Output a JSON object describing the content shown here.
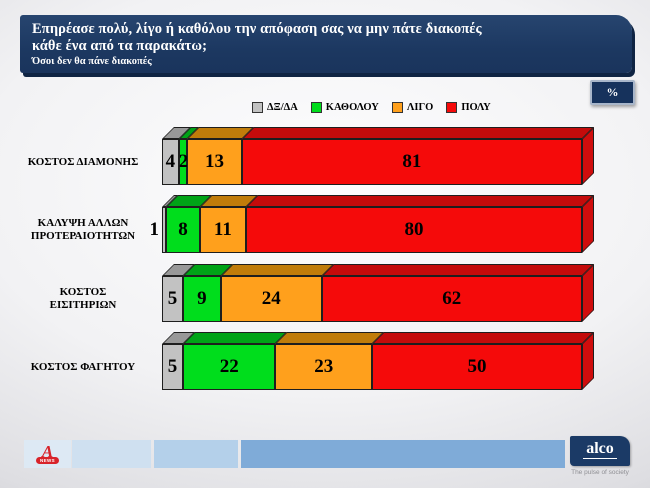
{
  "header": {
    "title_line1": "Επηρέασε πολύ, λίγο ή καθόλου την απόφαση σας να μην πάτε διακοπές",
    "title_line2": "κάθε ένα από τα παρακάτω;",
    "subtitle": "Όσοι δεν θα πάνε διακοπές",
    "unit_badge": "%"
  },
  "chart_data": {
    "type": "bar",
    "stacked": true,
    "orientation": "horizontal",
    "unit": "%",
    "xlim": [
      0,
      100
    ],
    "legend_position": "top",
    "categories": [
      "ΚΟΣΤΟΣ ΔΙΑΜΟΝΗΣ",
      "ΚΑΛΥΨΗ ΑΛΛΩΝ ΠΡΟΤΕΡΑΙΟΤΗΤΩΝ",
      "ΚΟΣΤΟΣ ΕΙΣΙΤΗΡΙΩΝ",
      "ΚΟΣΤΟΣ ΦΑΓΗΤΟΥ"
    ],
    "categories_lines": [
      [
        "ΚΟΣΤΟΣ ΔΙΑΜΟΝΗΣ"
      ],
      [
        "ΚΑΛΥΨΗ ΑΛΛΩΝ",
        "ΠΡΟΤΕΡΑΙΟΤΗΤΩΝ"
      ],
      [
        "ΚΟΣΤΟΣ",
        "ΕΙΣΙΤΗΡΙΩΝ"
      ],
      [
        "ΚΟΣΤΟΣ ΦΑΓΗΤΟΥ"
      ]
    ],
    "series": [
      {
        "name": "ΔΞ/ΔΑ",
        "color": "#c2c2c2",
        "dark": "#989898",
        "side": "#a5a5a5",
        "values": [
          4,
          1,
          5,
          5
        ]
      },
      {
        "name": "ΚΑΘΟΛΟΥ",
        "color": "#00dd1c",
        "dark": "#00a317",
        "side": "#00b318",
        "values": [
          2,
          8,
          9,
          22
        ]
      },
      {
        "name": "ΛΙΓΟ",
        "color": "#ffa01c",
        "dark": "#c07c0a",
        "side": "#d2890e",
        "values": [
          13,
          11,
          24,
          23
        ]
      },
      {
        "name": "ΠΟΛΥ",
        "color": "#f50a0a",
        "dark": "#c40b0b",
        "side": "#cf0d0d",
        "values": [
          81,
          80,
          62,
          50
        ]
      }
    ]
  },
  "footer": {
    "alpha_logo": {
      "letter": "A",
      "news": "NEWS"
    },
    "strip_colors": [
      "#dde9f4",
      "#cfe0f0",
      "#b4d0ea",
      "#7fabd8"
    ],
    "alco_logo": {
      "text": "alco",
      "tagline": "The pulse of society"
    }
  },
  "colors": {
    "title_bg": "#1d3b66",
    "badge_bg": "#16325c",
    "value_text": "#000000"
  }
}
